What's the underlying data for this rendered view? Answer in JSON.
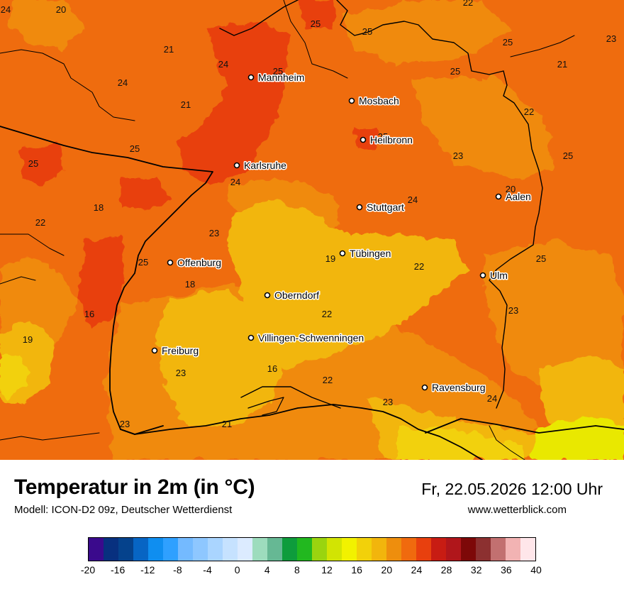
{
  "map": {
    "background_temperature_colour": "#ef6c0e",
    "cities": [
      {
        "name": "Mannheim",
        "icon": "city-dot-icon"
      },
      {
        "name": "Mosbach",
        "icon": "city-dot-icon"
      },
      {
        "name": "Heilbronn",
        "icon": "city-dot-icon"
      },
      {
        "name": "Karlsruhe",
        "icon": "city-dot-icon"
      },
      {
        "name": "Stuttgart",
        "icon": "city-dot-icon"
      },
      {
        "name": "Aalen",
        "icon": "city-dot-icon"
      },
      {
        "name": "Tübingen",
        "icon": "city-dot-icon"
      },
      {
        "name": "Offenburg",
        "icon": "city-dot-icon"
      },
      {
        "name": "Ulm",
        "icon": "city-dot-icon"
      },
      {
        "name": "Oberndorf",
        "icon": "city-dot-icon"
      },
      {
        "name": "Villingen-Schwenningen",
        "icon": "city-dot-icon"
      },
      {
        "name": "Freiburg",
        "icon": "city-dot-icon"
      },
      {
        "name": "Ravensburg",
        "icon": "city-dot-icon"
      }
    ],
    "temperature_labels": [
      "24",
      "20",
      "22",
      "25",
      "25",
      "23",
      "21",
      "25",
      "24",
      "24",
      "25",
      "21",
      "25",
      "21",
      "22",
      "23",
      "25",
      "25",
      "25",
      "24",
      "20",
      "24",
      "25",
      "18",
      "22",
      "23",
      "19",
      "22",
      "25",
      "18",
      "22",
      "25",
      "16",
      "19",
      "16",
      "23",
      "22",
      "23",
      "24",
      "23",
      "23",
      "21"
    ]
  },
  "title": "Temperatur in 2m (in °C)",
  "subtitle": "Modell: ICON-D2 09z, Deutscher Wetterdienst",
  "datetime": "Fr, 22.05.2026 12:00 Uhr",
  "website": "www.wetterblick.com",
  "legend": {
    "colors": [
      "#3a0a8c",
      "#08307f",
      "#05428c",
      "#0765c4",
      "#0f8ef0",
      "#2fa0ff",
      "#74baff",
      "#8ec7ff",
      "#aad5ff",
      "#c6e2ff",
      "#dcebff",
      "#9ddcbd",
      "#66b894",
      "#0e9c3c",
      "#22b81f",
      "#9ad40f",
      "#d2e403",
      "#f2f200",
      "#f2d10a",
      "#f2b50c",
      "#ee8e0d",
      "#f06a0e",
      "#e8400e",
      "#c81c13",
      "#b0161b",
      "#7d0808",
      "#8c3030",
      "#c27070",
      "#f2b3b3",
      "#ffe6ea"
    ],
    "ticks": [
      "-20",
      "-16",
      "-12",
      "-8",
      "-4",
      "0",
      "4",
      "8",
      "12",
      "16",
      "20",
      "24",
      "28",
      "32",
      "36",
      "40"
    ]
  }
}
